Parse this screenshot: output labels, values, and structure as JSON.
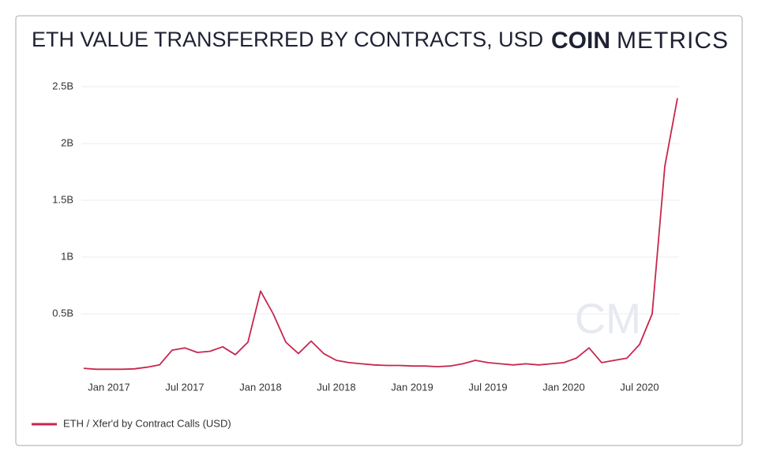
{
  "chart_data": {
    "type": "line",
    "title": "ETH VALUE TRANSFERRED BY CONTRACTS, USD",
    "logo": {
      "bold": "COIN",
      "light": "METRICS"
    },
    "x": [
      "2016-11",
      "2016-12",
      "2017-01",
      "2017-02",
      "2017-03",
      "2017-04",
      "2017-05",
      "2017-06",
      "2017-07",
      "2017-08",
      "2017-09",
      "2017-10",
      "2017-11",
      "2017-12",
      "2018-01",
      "2018-02",
      "2018-03",
      "2018-04",
      "2018-05",
      "2018-06",
      "2018-07",
      "2018-08",
      "2018-09",
      "2018-10",
      "2018-11",
      "2018-12",
      "2019-01",
      "2019-02",
      "2019-03",
      "2019-04",
      "2019-05",
      "2019-06",
      "2019-07",
      "2019-08",
      "2019-09",
      "2019-10",
      "2019-11",
      "2019-12",
      "2020-01",
      "2020-02",
      "2020-03",
      "2020-04",
      "2020-05",
      "2020-06",
      "2020-07",
      "2020-08",
      "2020-09",
      "2020-10"
    ],
    "series": [
      {
        "name": "ETH / Xfer'd by Contract Calls (USD)",
        "color": "#c8264f",
        "values": [
          20000000,
          12000000,
          12000000,
          12000000,
          15000000,
          30000000,
          50000000,
          180000000,
          200000000,
          160000000,
          170000000,
          210000000,
          140000000,
          250000000,
          700000000,
          500000000,
          250000000,
          150000000,
          260000000,
          150000000,
          90000000,
          70000000,
          60000000,
          50000000,
          45000000,
          45000000,
          40000000,
          40000000,
          35000000,
          40000000,
          60000000,
          90000000,
          70000000,
          60000000,
          50000000,
          60000000,
          50000000,
          60000000,
          70000000,
          110000000,
          200000000,
          70000000,
          90000000,
          110000000,
          230000000,
          500000000,
          1800000000,
          2400000000
        ]
      }
    ],
    "xlim": [
      "2016-11",
      "2020-10"
    ],
    "xticks": [
      {
        "value": "2017-01",
        "label": "Jan 2017"
      },
      {
        "value": "2017-07",
        "label": "Jul 2017"
      },
      {
        "value": "2018-01",
        "label": "Jan 2018"
      },
      {
        "value": "2018-07",
        "label": "Jul 2018"
      },
      {
        "value": "2019-01",
        "label": "Jan 2019"
      },
      {
        "value": "2019-07",
        "label": "Jul 2019"
      },
      {
        "value": "2020-01",
        "label": "Jan 2020"
      },
      {
        "value": "2020-07",
        "label": "Jul 2020"
      }
    ],
    "ylim": [
      0,
      2600000000
    ],
    "yticks": [
      {
        "value": 500000000,
        "label": "0.5B"
      },
      {
        "value": 1000000000,
        "label": "1B"
      },
      {
        "value": 1500000000,
        "label": "1.5B"
      },
      {
        "value": 2000000000,
        "label": "2B"
      },
      {
        "value": 2500000000,
        "label": "2.5B"
      }
    ],
    "grid": true
  }
}
